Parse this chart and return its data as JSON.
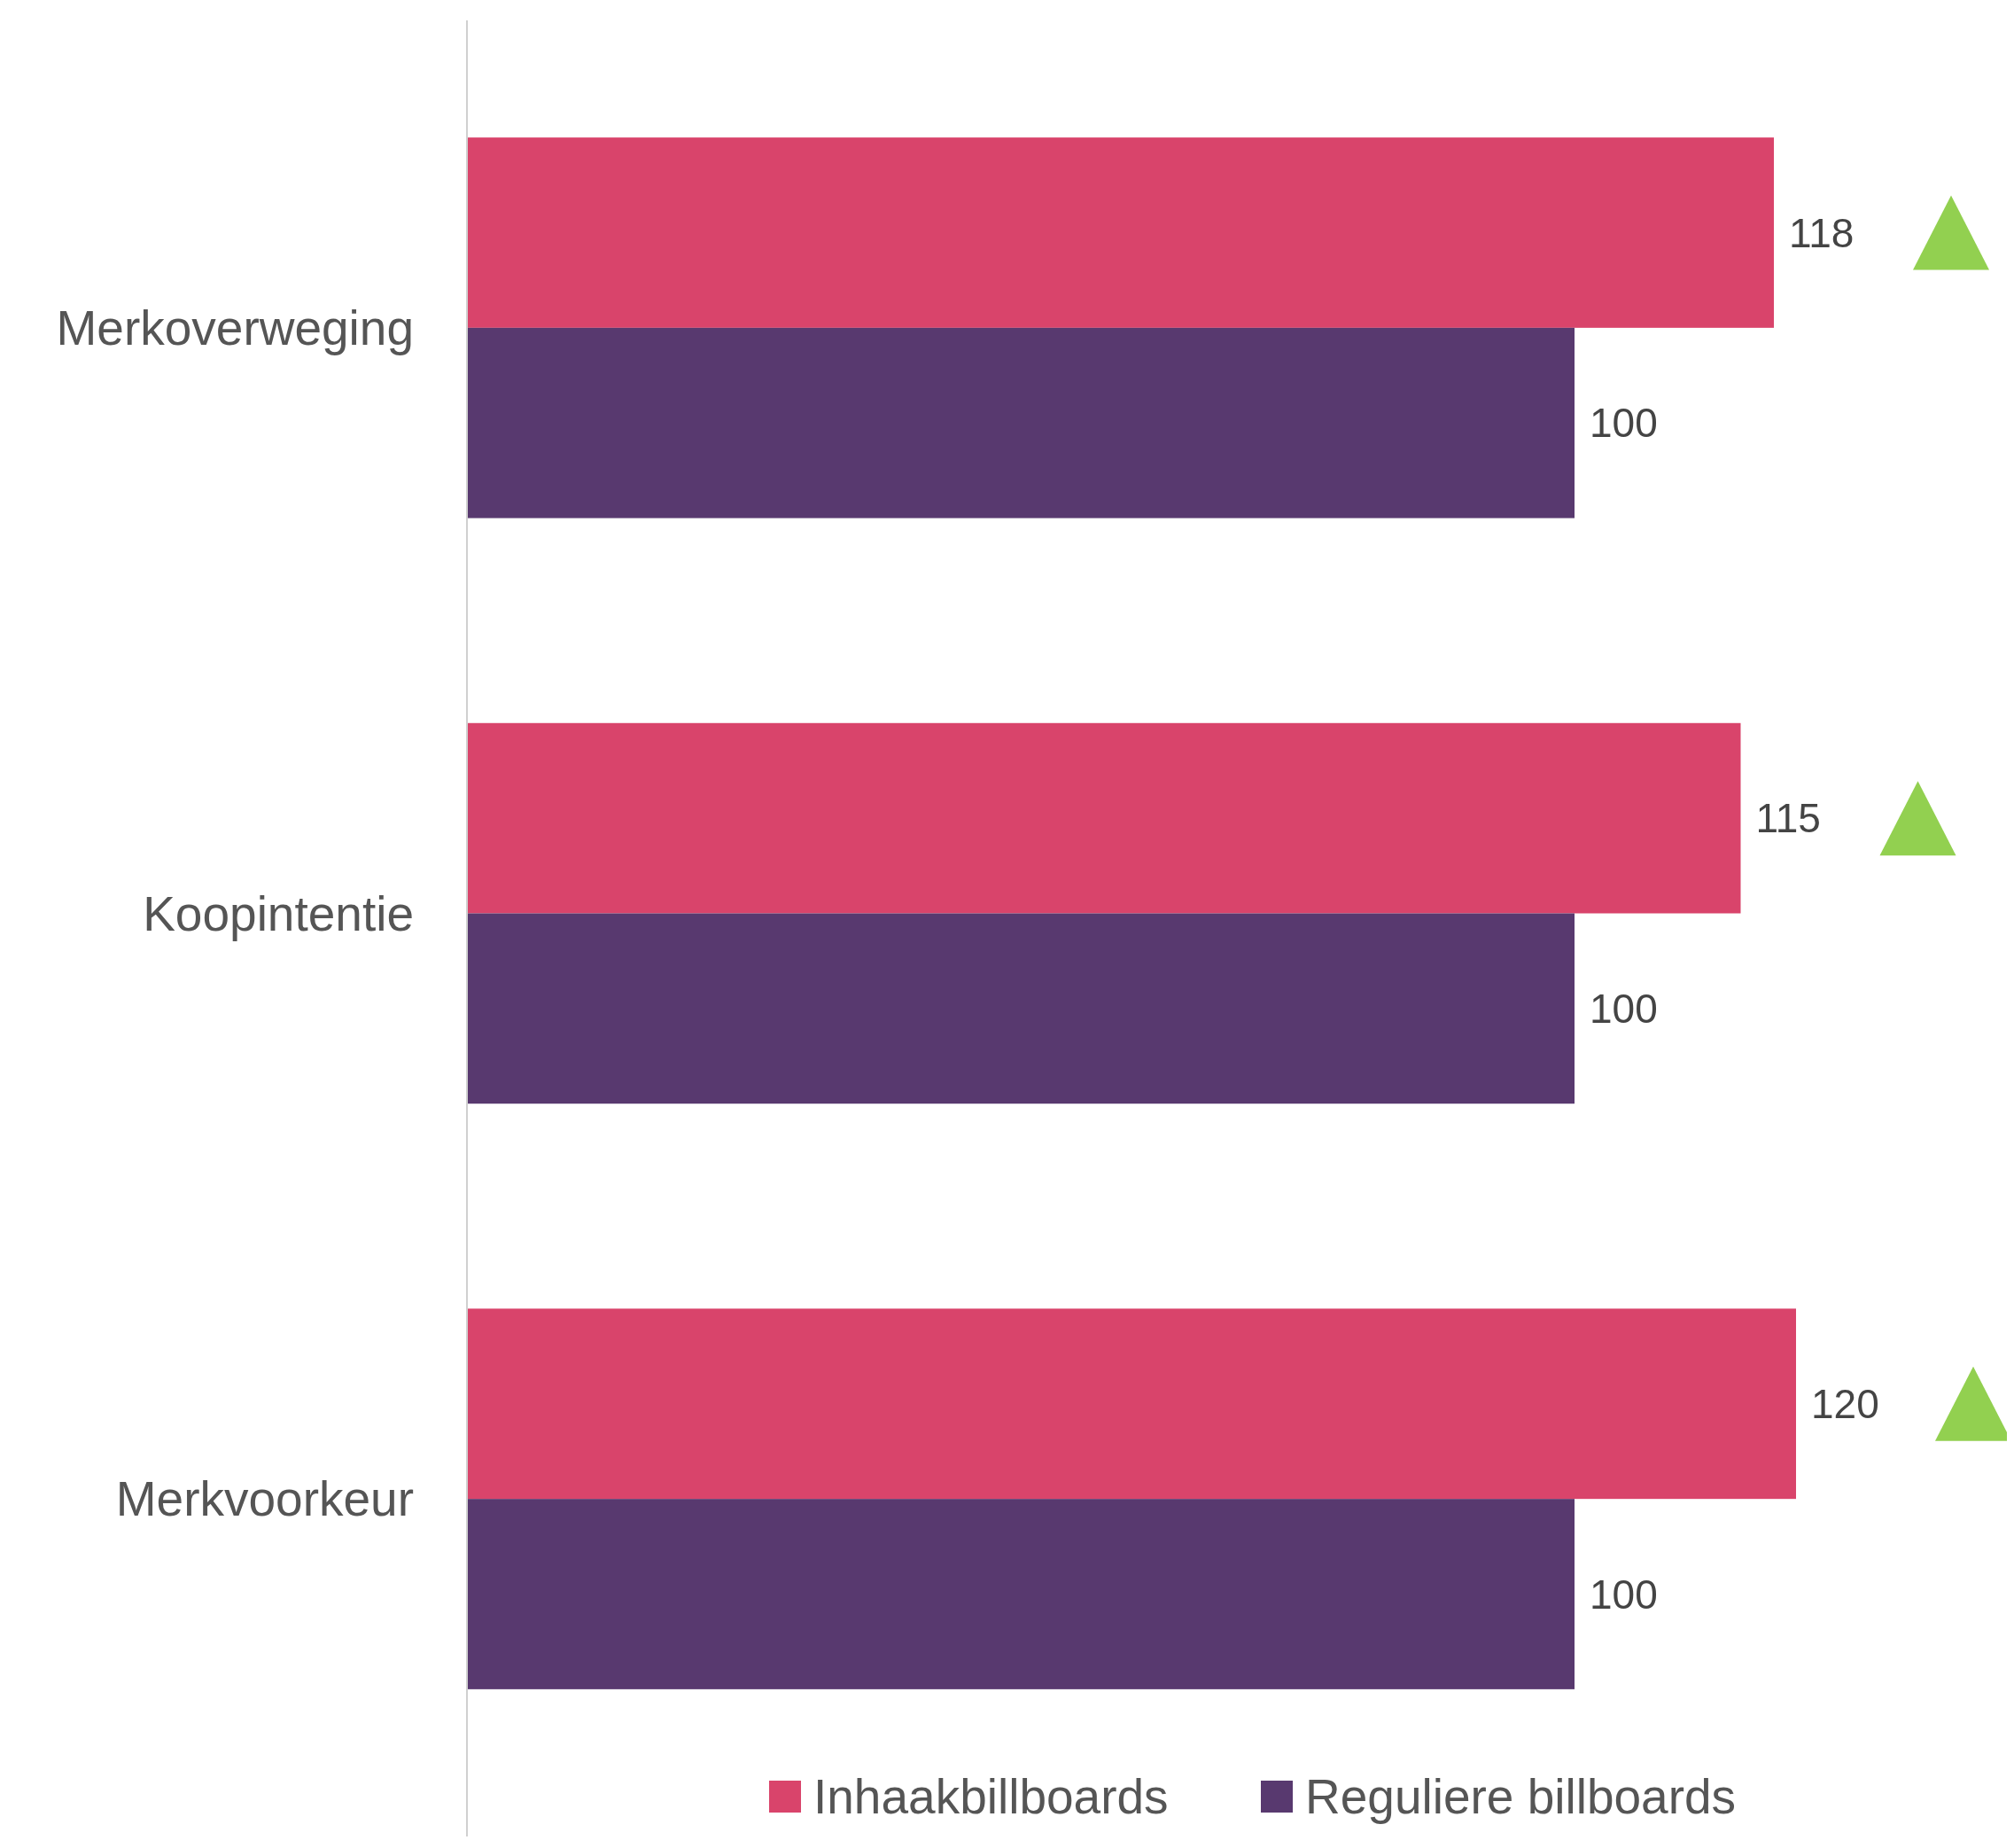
{
  "chart_data": {
    "type": "bar",
    "orientation": "horizontal",
    "categories": [
      "Merkoverweging",
      "Koopintentie",
      "Merkvoorkeur"
    ],
    "series": [
      {
        "name": "Inhaakbillboards",
        "color": "#d9446b",
        "values": [
          118,
          115,
          120
        ]
      },
      {
        "name": "Reguliere billboards",
        "color": "#58396f",
        "values": [
          100,
          100,
          100
        ]
      }
    ],
    "data_labels": true,
    "legend": "bottom"
  }
}
